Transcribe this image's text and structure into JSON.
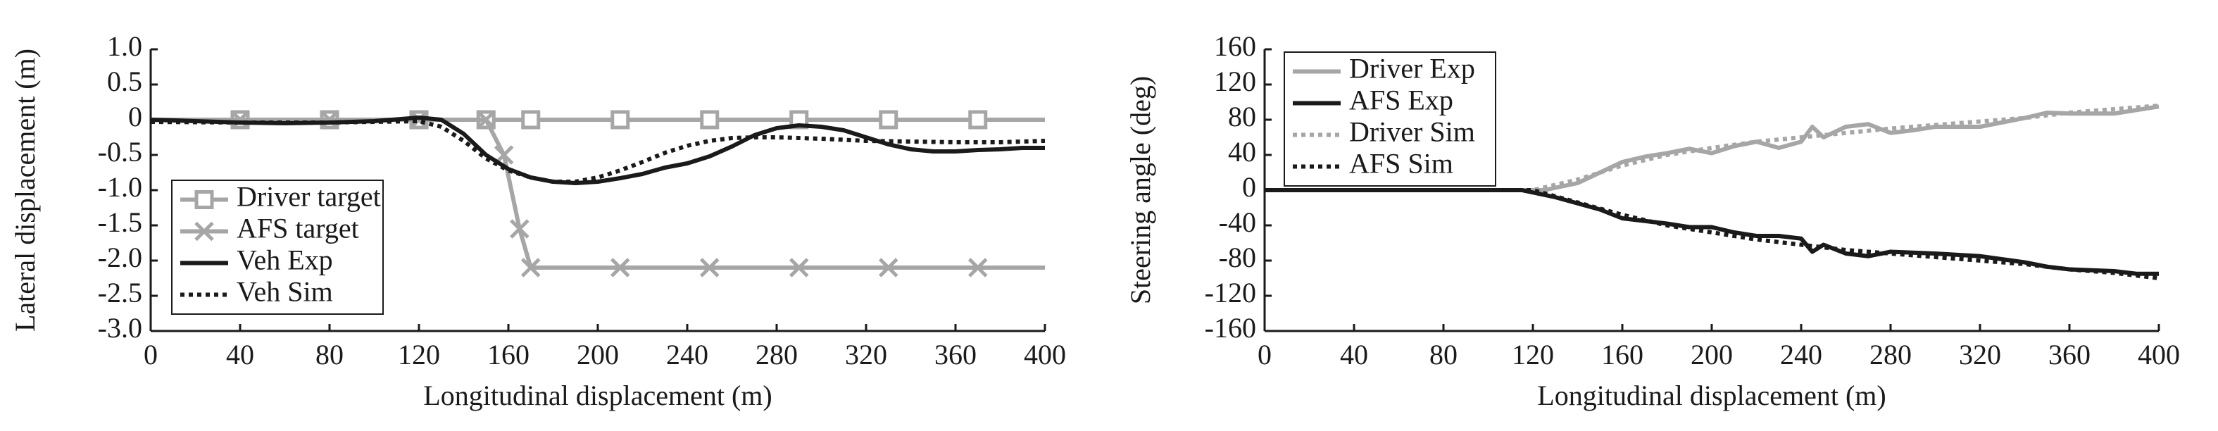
{
  "chart_data": [
    {
      "type": "line",
      "x_label": "Longitudinal displacement (m)",
      "y_label": "Lateral displacement (m)",
      "xlim": [
        0,
        400
      ],
      "xticks": [
        0,
        40,
        80,
        120,
        160,
        200,
        240,
        280,
        320,
        360,
        400
      ],
      "ylim": [
        -3,
        1
      ],
      "yticks": [
        {
          "value": 1,
          "label": "1.0"
        },
        0.5,
        0,
        -0.5,
        {
          "value": -1,
          "label": "-1.0"
        },
        -1.5,
        {
          "value": -2,
          "label": "-2.0"
        },
        -2.5,
        {
          "value": -3,
          "label": "-3.0"
        }
      ],
      "legend": "lower left",
      "series": [
        {
          "name": "Driver target",
          "color": "#a6a6a6",
          "style": "solid",
          "marker": "square",
          "x": [
            0,
            40,
            80,
            120,
            150,
            170,
            210,
            250,
            290,
            330,
            370,
            400
          ],
          "values": [
            0,
            0,
            0,
            0,
            0,
            0,
            0,
            0,
            0,
            0,
            0,
            0
          ]
        },
        {
          "name": "AFS target",
          "color": "#a6a6a6",
          "style": "solid",
          "marker": "x",
          "x": [
            0,
            40,
            80,
            120,
            150,
            158,
            165,
            170,
            210,
            250,
            290,
            330,
            370,
            400
          ],
          "values": [
            0,
            0,
            0,
            0,
            0,
            -0.5,
            -1.55,
            -2.1,
            -2.1,
            -2.1,
            -2.1,
            -2.1,
            -2.1,
            -2.1
          ]
        },
        {
          "name": "Veh Exp",
          "color": "#1a1a1a",
          "style": "solid",
          "marker": "none",
          "x": [
            0,
            20,
            40,
            60,
            80,
            100,
            120,
            130,
            140,
            150,
            160,
            170,
            180,
            190,
            200,
            210,
            220,
            230,
            240,
            250,
            260,
            270,
            280,
            290,
            300,
            310,
            320,
            330,
            340,
            350,
            360,
            370,
            380,
            390,
            400
          ],
          "values": [
            0,
            -0.02,
            -0.04,
            -0.05,
            -0.04,
            -0.02,
            0.03,
            0,
            -0.2,
            -0.5,
            -0.7,
            -0.82,
            -0.88,
            -0.9,
            -0.88,
            -0.83,
            -0.77,
            -0.68,
            -0.62,
            -0.52,
            -0.38,
            -0.22,
            -0.12,
            -0.08,
            -0.1,
            -0.15,
            -0.25,
            -0.35,
            -0.42,
            -0.45,
            -0.45,
            -0.43,
            -0.42,
            -0.4,
            -0.4
          ]
        },
        {
          "name": "Veh Sim",
          "color": "#1a1a1a",
          "style": "dotted",
          "marker": "none",
          "x": [
            0,
            40,
            80,
            120,
            130,
            140,
            150,
            160,
            170,
            180,
            190,
            200,
            210,
            220,
            230,
            240,
            250,
            260,
            270,
            280,
            290,
            300,
            320,
            340,
            360,
            380,
            400
          ],
          "values": [
            -0.03,
            -0.04,
            -0.04,
            -0.02,
            -0.1,
            -0.3,
            -0.55,
            -0.72,
            -0.82,
            -0.88,
            -0.88,
            -0.82,
            -0.72,
            -0.6,
            -0.47,
            -0.37,
            -0.3,
            -0.26,
            -0.25,
            -0.25,
            -0.26,
            -0.27,
            -0.3,
            -0.31,
            -0.32,
            -0.32,
            -0.3
          ]
        }
      ]
    },
    {
      "type": "line",
      "x_label": "Longitudinal displacement (m)",
      "y_label": "Steering angle (deg)",
      "xlim": [
        0,
        400
      ],
      "xticks": [
        0,
        40,
        80,
        120,
        160,
        200,
        240,
        280,
        320,
        360,
        400
      ],
      "ylim": [
        -160,
        160
      ],
      "yticks": [
        160,
        120,
        80,
        40,
        0,
        -40,
        -80,
        -120,
        -160
      ],
      "legend": "upper left",
      "series": [
        {
          "name": "Driver Exp",
          "color": "#a6a6a6",
          "style": "solid",
          "marker": "none",
          "x": [
            0,
            40,
            80,
            125,
            140,
            150,
            160,
            170,
            180,
            190,
            200,
            210,
            220,
            230,
            240,
            245,
            250,
            260,
            270,
            280,
            290,
            300,
            320,
            340,
            350,
            360,
            380,
            400
          ],
          "values": [
            0,
            0,
            0,
            0,
            8,
            20,
            32,
            38,
            42,
            47,
            42,
            50,
            55,
            48,
            55,
            72,
            60,
            72,
            75,
            65,
            68,
            72,
            72,
            82,
            88,
            87,
            87,
            95
          ]
        },
        {
          "name": "AFS Exp",
          "color": "#1a1a1a",
          "style": "solid",
          "marker": "none",
          "x": [
            0,
            40,
            80,
            115,
            130,
            140,
            150,
            160,
            170,
            180,
            190,
            200,
            210,
            220,
            230,
            240,
            245,
            250,
            260,
            270,
            280,
            300,
            320,
            340,
            350,
            360,
            380,
            390,
            400
          ],
          "values": [
            0,
            0,
            0,
            0,
            -8,
            -15,
            -22,
            -32,
            -35,
            -38,
            -42,
            -42,
            -48,
            -52,
            -52,
            -55,
            -70,
            -62,
            -72,
            -75,
            -70,
            -72,
            -75,
            -82,
            -87,
            -90,
            -92,
            -95,
            -95
          ]
        },
        {
          "name": "Driver Sim",
          "color": "#a6a6a6",
          "style": "dotted",
          "marker": "none",
          "x": [
            0,
            40,
            80,
            120,
            140,
            160,
            180,
            200,
            220,
            240,
            260,
            280,
            300,
            320,
            340,
            360,
            380,
            400
          ],
          "values": [
            0,
            0,
            0,
            0,
            12,
            28,
            40,
            48,
            55,
            60,
            65,
            70,
            74,
            78,
            82,
            88,
            92,
            96
          ]
        },
        {
          "name": "AFS Sim",
          "color": "#1a1a1a",
          "style": "dotted",
          "marker": "none",
          "x": [
            0,
            40,
            80,
            120,
            140,
            160,
            180,
            200,
            220,
            240,
            260,
            280,
            300,
            320,
            340,
            360,
            380,
            400
          ],
          "values": [
            0,
            0,
            0,
            0,
            -14,
            -28,
            -40,
            -48,
            -56,
            -62,
            -68,
            -72,
            -76,
            -80,
            -84,
            -90,
            -94,
            -100
          ]
        }
      ]
    }
  ]
}
